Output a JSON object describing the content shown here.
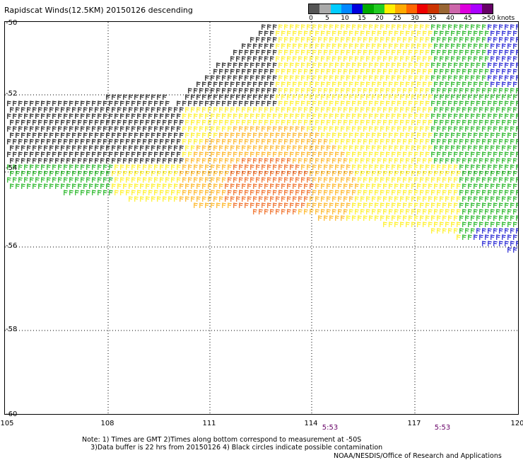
{
  "title": "Rapidscat Winds(12.5KM) 20150126 descending",
  "colorbar": {
    "colors": [
      "#555555",
      "#aaaaaa",
      "#00ccff",
      "#0088ff",
      "#0000dd",
      "#00aa00",
      "#22cc22",
      "#ffee00",
      "#ffaa00",
      "#ff6600",
      "#ee0000",
      "#cc3300",
      "#996633",
      "#cc66aa",
      "#dd00dd",
      "#aa00ff",
      "#660066"
    ],
    "labels": [
      "0",
      "5",
      "10",
      "15",
      "20",
      "25",
      "30",
      "35",
      "40",
      "45",
      ">50 knots"
    ]
  },
  "latitude_labels": [
    "-50",
    "-52",
    "-54",
    "-56",
    "-58",
    "-60"
  ],
  "longitude_labels": [
    "105",
    "108",
    "111",
    "114",
    "117",
    "120"
  ],
  "times": [
    "5:53",
    "5:53"
  ],
  "notes": {
    "line1": "Note: 1) Times are GMT 2)Times along bottom correspond to measurement at -50S",
    "line2": "3)Data buffer is 22 hrs from 20150126 4) Black circles indicate possible contamination"
  },
  "credit": "NOAA/NESDIS/Office of Research and Applications",
  "map": {
    "lon_range": [
      105,
      120
    ],
    "lat_range": [
      -50,
      -60
    ],
    "wind_colors": {
      "calm": "#000000",
      "light": "#00aa00",
      "moderate": "#ffee00",
      "fresh": "#ffaa00",
      "strong": "#ee5500",
      "blue": "#0000cc"
    }
  }
}
